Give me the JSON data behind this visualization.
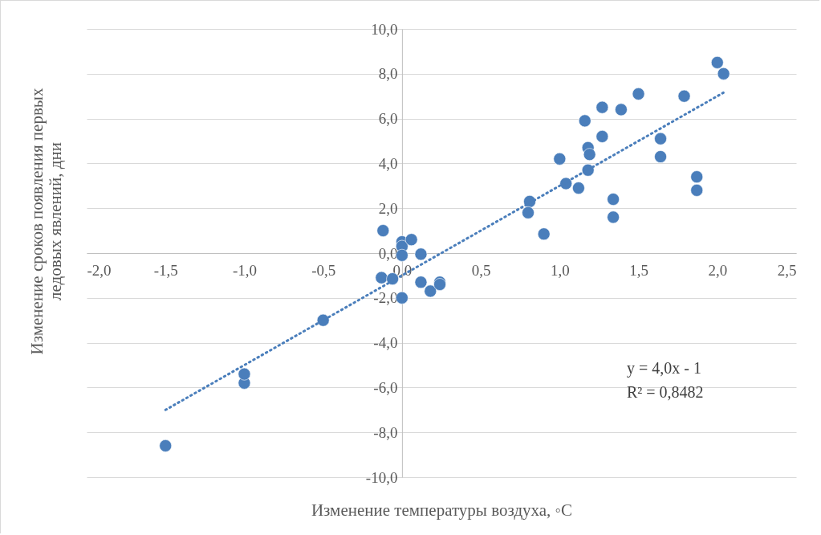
{
  "chart_data": {
    "type": "scatter",
    "xlabel": "Изменение температуры воздуха, ◦C",
    "ylabel": "Изменение сроков появления первых ледовых явлений, дни",
    "xlim": [
      -2,
      2.5
    ],
    "ylim": [
      -10,
      10
    ],
    "xticks": [
      {
        "value": -2,
        "label": "-2,0"
      },
      {
        "value": -1.5,
        "label": "-1,5"
      },
      {
        "value": -1,
        "label": "-1,0"
      },
      {
        "value": -0.5,
        "label": "-0,5"
      },
      {
        "value": 0,
        "label": "0,0"
      },
      {
        "value": 0.5,
        "label": "0,5"
      },
      {
        "value": 1,
        "label": "1,0"
      },
      {
        "value": 1.5,
        "label": "1,5"
      },
      {
        "value": 2,
        "label": "2,0"
      },
      {
        "value": 2.5,
        "label": "2,5"
      }
    ],
    "yticks": [
      {
        "value": -10,
        "label": "-10,0"
      },
      {
        "value": -8,
        "label": "-8,0"
      },
      {
        "value": -6,
        "label": "-6,0"
      },
      {
        "value": -4,
        "label": "-4,0"
      },
      {
        "value": -2,
        "label": "-2,0"
      },
      {
        "value": 0,
        "label": "0,0"
      },
      {
        "value": 2,
        "label": "2,0"
      },
      {
        "value": 4,
        "label": "4,0"
      },
      {
        "value": 6,
        "label": "6,0"
      },
      {
        "value": 8,
        "label": "8,0"
      },
      {
        "value": 10,
        "label": "10,0"
      }
    ],
    "grid": "y",
    "annotations": [
      "y = 4,0x  - 1",
      "R² = 0,8482"
    ],
    "series": [
      {
        "type": "scatter",
        "color": "#4a7ebb",
        "marker": "circle",
        "x": [
          -1.5,
          -1.0,
          -1.0,
          -0.5,
          -0.12,
          -0.13,
          -0.06,
          0,
          0,
          0,
          0.06,
          0,
          0.12,
          0.12,
          0.18,
          0.24,
          0.24,
          0.81,
          0.8,
          0.9,
          1.0,
          1.04,
          1.12,
          1.16,
          1.18,
          1.19,
          1.18,
          1.27,
          1.27,
          1.34,
          1.34,
          1.39,
          1.5,
          1.64,
          1.64,
          1.79,
          1.87,
          1.87,
          2.0,
          2.04
        ],
        "values": [
          -8.6,
          -5.8,
          -5.4,
          -3.0,
          1.0,
          -1.1,
          -1.15,
          0.5,
          0.3,
          -0.1,
          0.6,
          -2.0,
          -0.05,
          -1.3,
          -1.7,
          -1.3,
          -1.4,
          2.3,
          1.8,
          0.85,
          4.2,
          3.1,
          2.9,
          5.9,
          4.7,
          4.4,
          3.7,
          6.5,
          5.2,
          2.4,
          1.6,
          6.4,
          7.1,
          5.1,
          4.3,
          7.0,
          3.4,
          2.8,
          8.5,
          8.0
        ]
      },
      {
        "type": "line",
        "color": "#4a7ebb",
        "line_style": "dotted",
        "marker": "none",
        "x": [
          -1.5,
          2.04
        ],
        "values": [
          -7,
          7.16
        ]
      }
    ]
  }
}
